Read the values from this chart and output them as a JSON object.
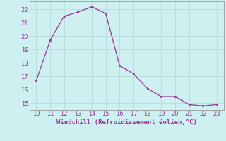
{
  "x": [
    10,
    11,
    12,
    13,
    14,
    15,
    16,
    17,
    18,
    19,
    20,
    21,
    22,
    23
  ],
  "y": [
    16.7,
    19.7,
    21.5,
    21.8,
    22.2,
    21.7,
    17.8,
    17.2,
    16.1,
    15.5,
    15.5,
    14.9,
    14.8,
    14.9
  ],
  "line_color": "#993399",
  "marker_color": "#993399",
  "bg_color": "#cff0f0",
  "grid_color": "#b8dede",
  "xlabel": "Windchill (Refroidissement éolien,°C)",
  "xlabel_color": "#993399",
  "tick_color": "#993399",
  "spine_color": "#999999",
  "ylim": [
    14.5,
    22.6
  ],
  "xlim": [
    9.5,
    23.5
  ],
  "yticks": [
    15,
    16,
    17,
    18,
    19,
    20,
    21,
    22
  ],
  "xticks": [
    10,
    11,
    12,
    13,
    14,
    15,
    16,
    17,
    18,
    19,
    20,
    21,
    22,
    23
  ]
}
